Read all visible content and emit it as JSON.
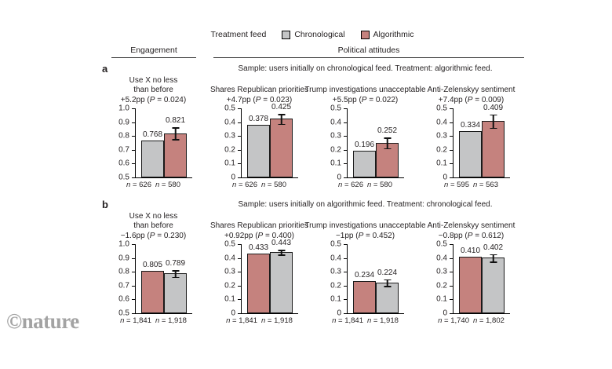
{
  "watermark": "©nature",
  "legend": {
    "label": "Treatment feed",
    "items": [
      {
        "label": "Chronological",
        "color": "#c4c5c6"
      },
      {
        "label": "Algorithmic",
        "color": "#c5827e"
      }
    ]
  },
  "section_headers": {
    "engagement": "Engagement",
    "political": "Political attitudes"
  },
  "panels": [
    {
      "id": "a",
      "sample_caption": "Sample: users initially on chronological feed. Treatment: algorithmic feed."
    },
    {
      "id": "b",
      "sample_caption": "Sample: users initially on algorithmic feed. Treatment: chronological feed."
    }
  ],
  "chart_data": [
    {
      "panel": "a",
      "type": "bar",
      "title": [
        "Use X no less",
        "than before"
      ],
      "effect": "+5.2pp (P = 0.024)",
      "ylim": [
        0.5,
        1.0
      ],
      "yticks": [
        "1.0",
        "0.9",
        "0.8",
        "0.7",
        "0.6",
        "0.5"
      ],
      "grid": false,
      "series": [
        {
          "name": "Chronological",
          "value": 0.768,
          "label": "0.768",
          "n": "n = 626"
        },
        {
          "name": "Algorithmic",
          "value": 0.821,
          "label": "0.821",
          "n": "n = 580",
          "error": 0.046
        }
      ]
    },
    {
      "panel": "a",
      "type": "bar",
      "title": [
        "Shares Republican priorities"
      ],
      "effect": "+4.7pp (P = 0.023)",
      "ylim": [
        0,
        0.5
      ],
      "yticks": [
        "0.5",
        "0.4",
        "0.3",
        "0.2",
        "0.1",
        "0"
      ],
      "grid": false,
      "series": [
        {
          "name": "Chronological",
          "value": 0.378,
          "label": "0.378",
          "n": "n = 626"
        },
        {
          "name": "Algorithmic",
          "value": 0.425,
          "label": "0.425",
          "n": "n = 580",
          "error": 0.04
        }
      ]
    },
    {
      "panel": "a",
      "type": "bar",
      "title": [
        "Trump investigations unacceptable"
      ],
      "effect": "+5.5pp (P = 0.022)",
      "ylim": [
        0,
        0.5
      ],
      "yticks": [
        "0.5",
        "0.4",
        "0.3",
        "0.2",
        "0.1",
        "0"
      ],
      "grid": false,
      "series": [
        {
          "name": "Chronological",
          "value": 0.196,
          "label": "0.196",
          "n": "n = 626"
        },
        {
          "name": "Algorithmic",
          "value": 0.252,
          "label": "0.252",
          "n": "n = 580",
          "error": 0.042
        }
      ]
    },
    {
      "panel": "a",
      "type": "bar",
      "title": [
        "Anti-Zelenskyy sentiment"
      ],
      "effect": "+7.4pp (P = 0.009)",
      "ylim": [
        0,
        0.5
      ],
      "yticks": [
        "0.5",
        "0.4",
        "0.3",
        "0.2",
        "0.1",
        "0"
      ],
      "grid": false,
      "series": [
        {
          "name": "Chronological",
          "value": 0.334,
          "label": "0.334",
          "n": "n = 595"
        },
        {
          "name": "Algorithmic",
          "value": 0.409,
          "label": "0.409",
          "n": "n = 563",
          "error": 0.052
        }
      ]
    },
    {
      "panel": "b",
      "type": "bar",
      "title": [
        "Use X no less",
        "than before"
      ],
      "effect": "−1.6pp (P = 0.230)",
      "ylim": [
        0.5,
        1.0
      ],
      "yticks": [
        "1.0",
        "0.9",
        "0.8",
        "0.7",
        "0.6",
        "0.5"
      ],
      "grid": false,
      "series": [
        {
          "name": "Algorithmic",
          "value": 0.805,
          "label": "0.805",
          "n": "n = 1,841"
        },
        {
          "name": "Chronological",
          "value": 0.789,
          "label": "0.789",
          "n": "n = 1,918",
          "error": 0.028
        }
      ]
    },
    {
      "panel": "b",
      "type": "bar",
      "title": [
        "Shares Republican priorities"
      ],
      "effect": "+0.92pp (P = 0.400)",
      "ylim": [
        0,
        0.5
      ],
      "yticks": [
        "0.5",
        "0.4",
        "0.3",
        "0.2",
        "0.1",
        "0"
      ],
      "grid": false,
      "series": [
        {
          "name": "Algorithmic",
          "value": 0.433,
          "label": "0.433",
          "n": "n = 1,841"
        },
        {
          "name": "Chronological",
          "value": 0.443,
          "label": "0.443",
          "n": "n = 1,918",
          "error": 0.022
        }
      ]
    },
    {
      "panel": "b",
      "type": "bar",
      "title": [
        "Trump investigations unacceptable"
      ],
      "effect": "−1pp (P = 0.452)",
      "ylim": [
        0,
        0.5
      ],
      "yticks": [
        "0.5",
        "0.4",
        "0.3",
        "0.2",
        "0.1",
        "0"
      ],
      "grid": false,
      "series": [
        {
          "name": "Algorithmic",
          "value": 0.234,
          "label": "0.234",
          "n": "n = 1,841"
        },
        {
          "name": "Chronological",
          "value": 0.224,
          "label": "0.224",
          "n": "n = 1,918",
          "error": 0.028
        }
      ]
    },
    {
      "panel": "b",
      "type": "bar",
      "title": [
        "Anti-Zelenskyy sentiment"
      ],
      "effect": "−0.8pp (P = 0.612)",
      "ylim": [
        0,
        0.5
      ],
      "yticks": [
        "0.5",
        "0.4",
        "0.3",
        "0.2",
        "0.1",
        "0"
      ],
      "grid": false,
      "series": [
        {
          "name": "Algorithmic",
          "value": 0.41,
          "label": "0.410",
          "n": "n = 1,740"
        },
        {
          "name": "Chronological",
          "value": 0.402,
          "label": "0.402",
          "n": "n = 1,802",
          "error": 0.032
        }
      ]
    }
  ]
}
